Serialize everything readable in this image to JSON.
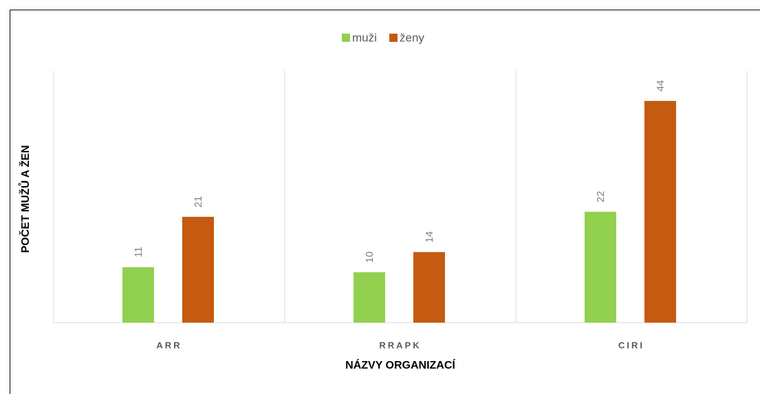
{
  "chart_data": {
    "type": "bar",
    "categories": [
      "ARR",
      "RRAPK",
      "CIRI"
    ],
    "series": [
      {
        "name": "muži",
        "color": "#92d050",
        "values": [
          11,
          10,
          22
        ]
      },
      {
        "name": "ženy",
        "color": "#c55a11",
        "values": [
          21,
          14,
          44
        ]
      }
    ],
    "xlabel": "NÁZVY ORGANIZACÍ",
    "ylabel": "POČET MUŽŮ A ŽEN",
    "ylim": [
      0,
      50
    ],
    "legend": "top"
  }
}
